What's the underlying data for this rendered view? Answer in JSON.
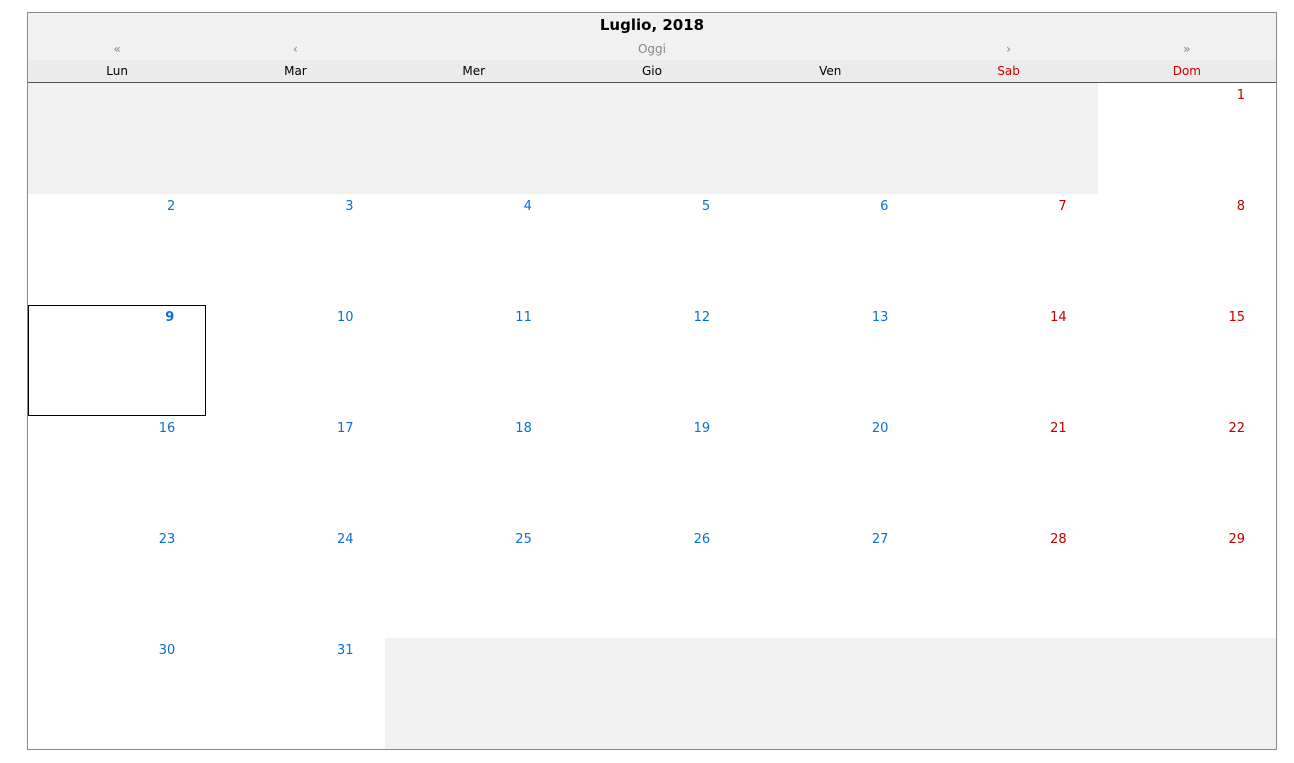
{
  "header": {
    "title": "Luglio, 2018"
  },
  "nav": {
    "prev_year": "«",
    "prev_month": "‹",
    "today": "Oggi",
    "next_month": "›",
    "next_year": "»"
  },
  "weekdays": [
    "Lun",
    "Mar",
    "Mer",
    "Gio",
    "Ven",
    "Sab",
    "Dom"
  ],
  "weeks": [
    [
      null,
      null,
      null,
      null,
      null,
      null,
      1
    ],
    [
      2,
      3,
      4,
      5,
      6,
      7,
      8
    ],
    [
      9,
      10,
      11,
      12,
      13,
      14,
      15
    ],
    [
      16,
      17,
      18,
      19,
      20,
      21,
      22
    ],
    [
      23,
      24,
      25,
      26,
      27,
      28,
      29
    ],
    [
      30,
      31,
      null,
      null,
      null,
      null,
      null
    ]
  ],
  "selected_day": 9,
  "colors": {
    "weekday": "#0a6fd6",
    "weekend": "#c00000",
    "empty_cell": "#f1f1f1"
  }
}
